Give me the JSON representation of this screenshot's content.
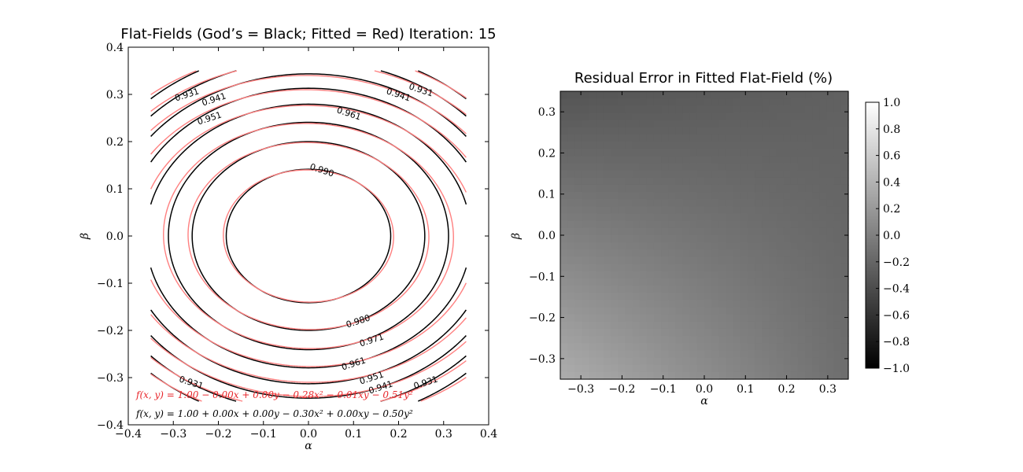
{
  "chart_data": [
    {
      "type": "contour",
      "title": "Flat-Fields (God’s = Black; Fitted = Red) Iteration: 15",
      "xlabel": "α",
      "ylabel": "β",
      "xlim": [
        -0.4,
        0.4
      ],
      "ylim": [
        -0.4,
        0.4
      ],
      "xticks": [
        "−0.4",
        "−0.3",
        "−0.2",
        "−0.1",
        "0.0",
        "0.1",
        "0.2",
        "0.3",
        "0.4"
      ],
      "yticks": [
        "0.4",
        "0.3",
        "0.2",
        "0.1",
        "0.0",
        "−0.1",
        "−0.2",
        "−0.3",
        "−0.4"
      ],
      "domain": [
        -0.35,
        0.35
      ],
      "series": [
        {
          "color": "#000000",
          "coeffs": {
            "c0": 1.0,
            "x": 0.0,
            "y": 0.0,
            "x2": -0.3,
            "xy": 0.0,
            "y2": -0.5
          }
        },
        {
          "color": "#ff8080",
          "coeffs": {
            "c0": 1.0,
            "x": 0.0,
            "y": 0.0,
            "x2": -0.28,
            "xy": -0.01,
            "y2": -0.51
          }
        }
      ],
      "levels": [
        0.921,
        0.931,
        0.941,
        0.951,
        0.961,
        0.971,
        0.98,
        0.99
      ],
      "contour_labels": [
        {
          "text": "0.931",
          "x": -0.27,
          "y": 0.3
        },
        {
          "text": "0.941",
          "x": -0.21,
          "y": 0.29
        },
        {
          "text": "0.951",
          "x": -0.22,
          "y": 0.25
        },
        {
          "text": "0.961",
          "x": 0.09,
          "y": 0.26
        },
        {
          "text": "0.931",
          "x": 0.25,
          "y": 0.31
        },
        {
          "text": "0.941",
          "x": 0.2,
          "y": 0.3
        },
        {
          "text": "0.990",
          "x": 0.03,
          "y": 0.14
        },
        {
          "text": "0.980",
          "x": 0.11,
          "y": -0.18
        },
        {
          "text": "0.971",
          "x": 0.14,
          "y": -0.22
        },
        {
          "text": "0.961",
          "x": 0.1,
          "y": -0.27
        },
        {
          "text": "0.951",
          "x": 0.14,
          "y": -0.3
        },
        {
          "text": "0.941",
          "x": 0.16,
          "y": -0.32
        },
        {
          "text": "0.931",
          "x": 0.26,
          "y": -0.31
        },
        {
          "text": "0.931",
          "x": -0.26,
          "y": -0.31
        }
      ],
      "equations": [
        {
          "text": "f(x, y) = 1.00 − 0.00x + 0.00y − 0.28x² − 0.01xy − 0.51y²",
          "color": "#e8262b"
        },
        {
          "text": "f(x, y) = 1.00 + 0.00x + 0.00y − 0.30x² + 0.00xy − 0.50y²",
          "color": "#000000"
        }
      ]
    },
    {
      "type": "heatmap",
      "title": "Residual Error in Fitted Flat-Field (%)",
      "xlabel": "α",
      "ylabel": "β",
      "xlim": [
        -0.35,
        0.35
      ],
      "ylim": [
        -0.35,
        0.35
      ],
      "xticks": [
        "−0.3",
        "−0.2",
        "−0.1",
        "0.0",
        "0.1",
        "0.2",
        "0.3"
      ],
      "yticks": [
        "0.3",
        "0.2",
        "0.1",
        "0.0",
        "−0.1",
        "−0.2",
        "−0.3"
      ],
      "colormap": "gray",
      "corner_values": {
        "top_left": -0.34,
        "top_right": -0.24,
        "bottom_left": 0.36,
        "bottom_right": -0.14
      },
      "colorbar": {
        "min": -1.0,
        "max": 1.0,
        "ticks": [
          "1.0",
          "0.8",
          "0.6",
          "0.4",
          "0.2",
          "0.0",
          "−0.2",
          "−0.4",
          "−0.6",
          "−0.8",
          "−1.0"
        ]
      }
    }
  ]
}
